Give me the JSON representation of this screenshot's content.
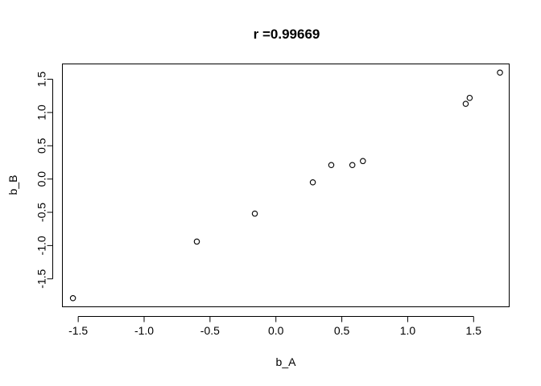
{
  "chart_data": {
    "type": "scatter",
    "title": "r =0.99669",
    "xlabel": "b_A",
    "ylabel": "b_B",
    "xlim": [
      -1.62,
      1.77
    ],
    "ylim": [
      -1.92,
      1.73
    ],
    "x_ticks": [
      -1.5,
      -1.0,
      -0.5,
      0.0,
      0.5,
      1.0,
      1.5
    ],
    "x_tick_labels": [
      "-1.5",
      "-1.0",
      "-0.5",
      "0.0",
      "0.5",
      "1.0",
      "1.5"
    ],
    "y_ticks": [
      -1.5,
      -1.0,
      -0.5,
      0.0,
      0.5,
      1.0,
      1.5
    ],
    "y_tick_labels": [
      "-1.5",
      "-1.0",
      "-0.5",
      "0.0",
      "0.5",
      "1.0",
      "1.5"
    ],
    "grid": false,
    "legend": "none",
    "series": [
      {
        "x": [
          -1.54,
          -0.6,
          -0.16,
          0.28,
          0.42,
          0.58,
          0.66,
          1.44,
          1.47,
          1.7
        ],
        "y": [
          -1.79,
          -0.94,
          -0.52,
          -0.05,
          0.21,
          0.21,
          0.27,
          1.13,
          1.22,
          1.6
        ]
      }
    ],
    "colors": {
      "points": "#000000",
      "axes": "#000000",
      "background": "#ffffff"
    }
  }
}
